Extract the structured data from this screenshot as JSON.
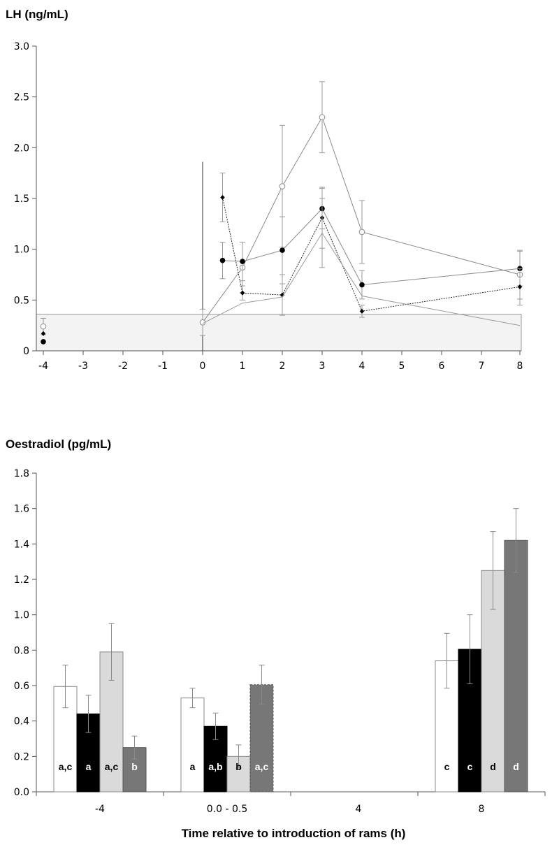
{
  "chart_data": [
    {
      "type": "line",
      "title": "LH (ng/mL)",
      "xlabel": "",
      "ylabel": "",
      "ylim": [
        0,
        3.0
      ],
      "y_ticks": [
        "0",
        "0.5",
        "1.0",
        "1.5",
        "2.0",
        "2.5",
        "3.0"
      ],
      "x_ticks": [
        "-4",
        "-3",
        "-2",
        "-1",
        "0",
        "1",
        "2",
        "3",
        "4",
        "5",
        "6",
        "7",
        "8"
      ],
      "grid": false,
      "legend": "none",
      "shaded_band": [
        0,
        0.36
      ],
      "vertical_line": {
        "x": 0,
        "y": [
          0,
          1.86
        ]
      },
      "series": [
        {
          "marker": "open-circle",
          "line_color": "#8a8a8a",
          "points": [
            {
              "x": -4,
              "y": 0.24,
              "err": 0.08
            },
            {
              "x": 0,
              "y": 0.28,
              "err": 0.13
            },
            {
              "x": 1,
              "y": 0.82,
              "err": 0.25
            },
            {
              "x": 2,
              "y": 1.62,
              "err": 0.6
            },
            {
              "x": 3,
              "y": 2.3,
              "err": 0.35
            },
            {
              "x": 4,
              "y": 1.17,
              "err": 0.31
            },
            {
              "x": 8,
              "y": 0.75,
              "err": 0.24
            }
          ]
        },
        {
          "marker": "filled-circle",
          "line_color": "#8a8a8a",
          "points": [
            {
              "x": -4,
              "y": 0.09,
              "err": 0
            },
            {
              "x": 0.5,
              "y": 0.89,
              "err": 0.18
            },
            {
              "x": 1,
              "y": 0.88,
              "err": 0.19
            },
            {
              "x": 2,
              "y": 0.99,
              "err": 0.33
            },
            {
              "x": 3,
              "y": 1.4,
              "err": 0.2
            },
            {
              "x": 4,
              "y": 0.65,
              "err": 0.14
            },
            {
              "x": 8,
              "y": 0.81,
              "err": 0.17
            }
          ]
        },
        {
          "marker": "filled-diamond",
          "line_color": "#222222",
          "dashed": true,
          "points": [
            {
              "x": -4,
              "y": 0.17,
              "err": 0
            },
            {
              "x": 0.5,
              "y": 1.51,
              "err": 0.24
            },
            {
              "x": 1,
              "y": 0.57,
              "err": 0.07
            },
            {
              "x": 2,
              "y": 0.55,
              "err": 0.2
            },
            {
              "x": 3,
              "y": 1.31,
              "err": 0.3
            },
            {
              "x": 4,
              "y": 0.39,
              "err": 0.06
            },
            {
              "x": 8,
              "y": 0.63,
              "err": 0.18
            }
          ]
        },
        {
          "marker": "none",
          "line_color": "#9a9a9a",
          "points": [
            {
              "x": 0,
              "y": 0.27
            },
            {
              "x": 1,
              "y": 0.47
            },
            {
              "x": 2,
              "y": 0.53
            },
            {
              "x": 3,
              "y": 1.16,
              "err": 0.34
            },
            {
              "x": 4,
              "y": 0.54
            },
            {
              "x": 8,
              "y": 0.25
            }
          ]
        }
      ]
    },
    {
      "type": "bar",
      "title": "Oestradiol (pg/mL)",
      "xlabel": "Time relative to introduction of rams (h)",
      "ylabel": "",
      "ylim": [
        0,
        1.8
      ],
      "y_ticks": [
        "0.0",
        "0.2",
        "0.4",
        "0.6",
        "0.8",
        "1.0",
        "1.2",
        "1.4",
        "1.6",
        "1.8"
      ],
      "categories": [
        "-4",
        "0.0 - 0.5",
        "4",
        "8"
      ],
      "grid": false,
      "legend": "none",
      "series": [
        {
          "fill": "#ffffff",
          "text_color": "#000000",
          "values": [
            0.595,
            0.53,
            null,
            0.74
          ],
          "errors": [
            0.12,
            0.055,
            null,
            0.155
          ],
          "labels": [
            "a,c",
            "a",
            "",
            "c"
          ]
        },
        {
          "fill": "#000000",
          "text_color": "#ffffff",
          "values": [
            0.44,
            0.37,
            null,
            0.805
          ],
          "errors": [
            0.105,
            0.075,
            null,
            0.195
          ],
          "labels": [
            "a",
            "a,b",
            "",
            "c"
          ]
        },
        {
          "fill": "#dadada",
          "text_color": "#000000",
          "values": [
            0.79,
            0.2,
            null,
            1.25
          ],
          "errors": [
            0.16,
            0.065,
            null,
            0.22
          ],
          "labels": [
            "a,c",
            "b",
            "",
            "d"
          ]
        },
        {
          "fill": "#777777",
          "text_color": "#ffffff",
          "values": [
            0.25,
            0.605,
            null,
            1.42
          ],
          "errors": [
            0.065,
            0.11,
            null,
            0.18
          ],
          "labels": [
            "b",
            "a,c",
            "",
            "d"
          ]
        }
      ]
    }
  ]
}
